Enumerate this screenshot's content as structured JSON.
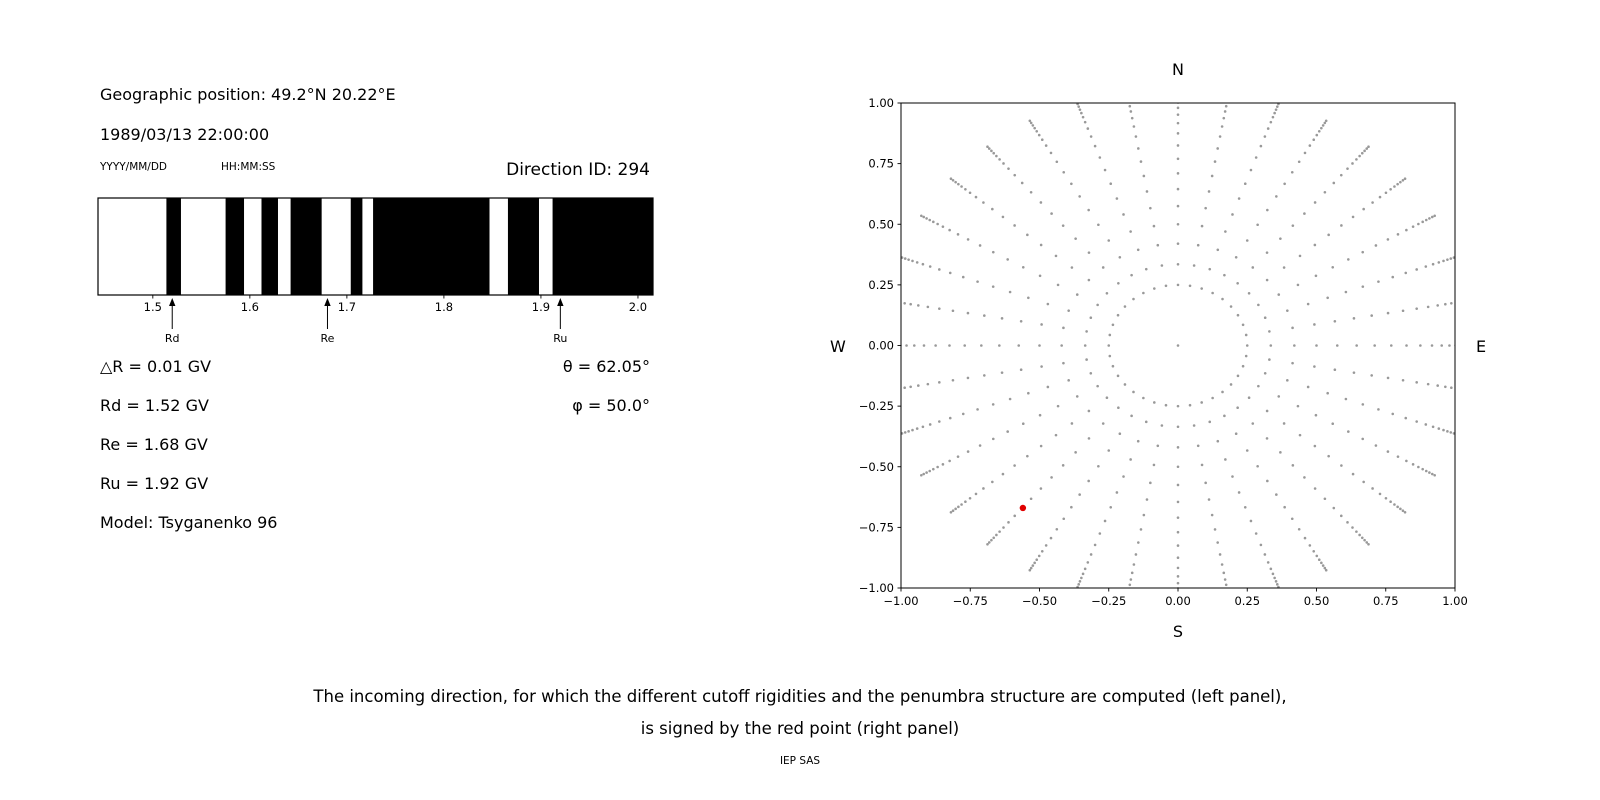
{
  "left_panel": {
    "geo_position": "Geographic position: 49.2°N 20.22°E",
    "datetime": "1989/03/13 22:00:00",
    "date_format_hint": "YYYY/MM/DD",
    "time_format_hint": "HH:MM:SS",
    "direction_id": "Direction ID: 294",
    "values": {
      "delta_r": "△R = 0.01 GV",
      "rd": "Rd = 1.52 GV",
      "re": "Re = 1.68 GV",
      "ru": "Ru = 1.92 GV",
      "model": "Model: Tsyganenko 96",
      "theta": "θ = 62.05°",
      "phi": "φ = 50.0°"
    }
  },
  "right_panel": {
    "compass": {
      "north": "N",
      "south": "S",
      "west": "W",
      "east": "E"
    }
  },
  "caption": {
    "line1": "The incoming direction, for which the different cutoff rigidities and the penumbra structure are computed (left panel),",
    "line2": "is signed by the red point (right panel)",
    "credit": "IEP SAS"
  },
  "chart_data": [
    {
      "type": "bar",
      "subtype": "penumbra-barcode",
      "unit": "GV",
      "x_range": [
        1.4435,
        2.0155
      ],
      "xticks": [
        1.5,
        1.6,
        1.7,
        1.8,
        1.9,
        2.0
      ],
      "bar_colors": {
        "allowed": "#ffffff",
        "forbidden": "#000000"
      },
      "black_intervals_gv": [
        [
          1.514,
          1.529
        ],
        [
          1.575,
          1.594
        ],
        [
          1.612,
          1.629
        ],
        [
          1.642,
          1.674
        ],
        [
          1.704,
          1.716
        ],
        [
          1.727,
          1.847
        ],
        [
          1.866,
          1.898
        ],
        [
          1.912,
          2.0155
        ]
      ],
      "markers": [
        {
          "label": "Rd",
          "value_gv": 1.52
        },
        {
          "label": "Re",
          "value_gv": 1.68
        },
        {
          "label": "Ru",
          "value_gv": 1.92
        }
      ]
    },
    {
      "type": "scatter",
      "subtype": "incoming-directions",
      "xlim": [
        -1,
        1
      ],
      "ylim": [
        -1,
        1
      ],
      "xticks": [
        -1.0,
        -0.75,
        -0.5,
        -0.25,
        0.0,
        0.25,
        0.5,
        0.75,
        1.0
      ],
      "yticks": [
        -1.0,
        -0.75,
        -0.5,
        -0.25,
        0.0,
        0.25,
        0.5,
        0.75,
        1.0
      ],
      "compass": {
        "top": "N",
        "bottom": "S",
        "left": "W",
        "right": "E"
      },
      "grid_points": {
        "azimuth_count": 36,
        "azimuth_step_deg": 10,
        "radii": [
          0.25,
          0.335,
          0.42,
          0.5,
          0.575,
          0.645,
          0.71,
          0.77,
          0.825,
          0.875,
          0.917,
          0.952,
          0.98,
          1.002,
          1.02,
          1.035,
          1.048,
          1.06,
          1.07
        ],
        "center_point": [
          0,
          0
        ],
        "color": "#999999",
        "dot_radius_px": 1.3
      },
      "red_point": {
        "x": -0.56,
        "y": -0.67,
        "color": "#e00000",
        "radius_px": 3.2
      }
    }
  ]
}
